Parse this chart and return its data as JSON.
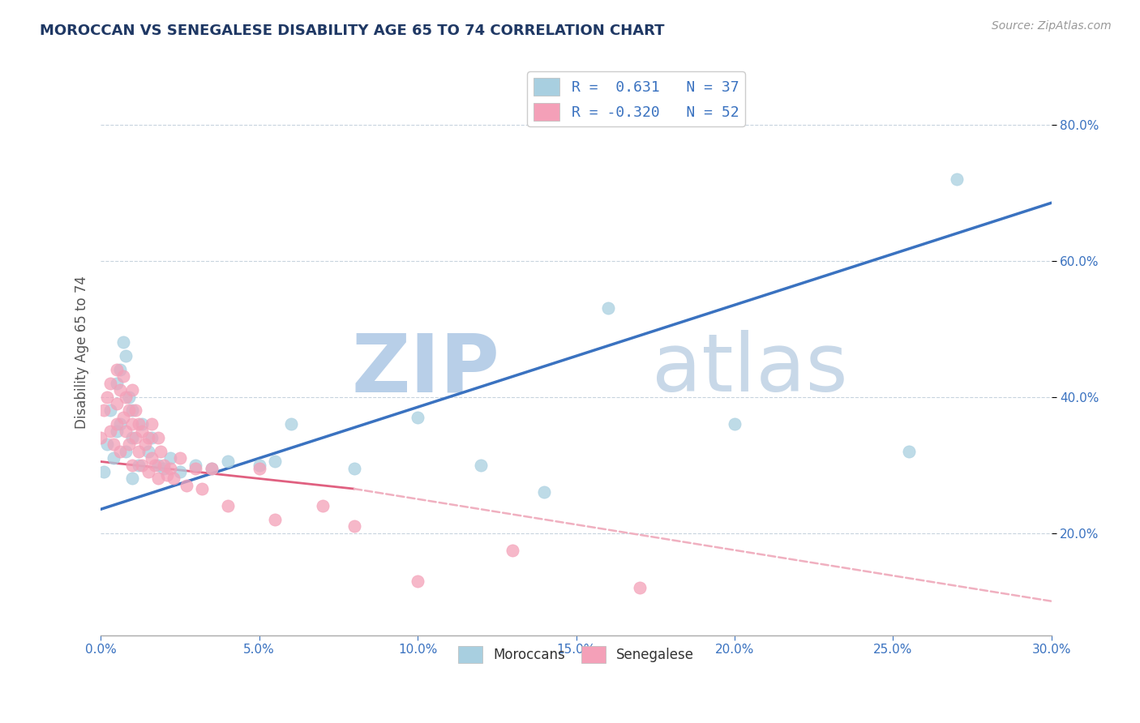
{
  "title": "MOROCCAN VS SENEGALESE DISABILITY AGE 65 TO 74 CORRELATION CHART",
  "source_text": "Source: ZipAtlas.com",
  "ylabel": "Disability Age 65 to 74",
  "xlim": [
    0.0,
    0.3
  ],
  "ylim": [
    0.05,
    0.88
  ],
  "xticks": [
    0.0,
    0.05,
    0.1,
    0.15,
    0.2,
    0.25,
    0.3
  ],
  "yticks_right": [
    0.2,
    0.4,
    0.6,
    0.8
  ],
  "moroccan_R": 0.631,
  "moroccan_N": 37,
  "senegalese_R": -0.32,
  "senegalese_N": 52,
  "moroccan_color": "#a8cfe0",
  "senegalese_color": "#f4a0b8",
  "moroccan_line_color": "#3a72c0",
  "senegalese_line_solid_color": "#e06080",
  "senegalese_line_dash_color": "#f0b0c0",
  "background_color": "#ffffff",
  "watermark_color": "#d0dce8",
  "title_color": "#1f3864",
  "axis_label_color": "#555555",
  "tick_color": "#3a72c0",
  "grid_color": "#c8d4de",
  "moroccan_scatter_x": [
    0.001,
    0.002,
    0.003,
    0.004,
    0.005,
    0.005,
    0.006,
    0.006,
    0.007,
    0.008,
    0.008,
    0.009,
    0.01,
    0.01,
    0.01,
    0.012,
    0.013,
    0.015,
    0.016,
    0.018,
    0.02,
    0.022,
    0.025,
    0.03,
    0.035,
    0.04,
    0.05,
    0.055,
    0.06,
    0.08,
    0.1,
    0.12,
    0.14,
    0.16,
    0.2,
    0.255,
    0.27
  ],
  "moroccan_scatter_y": [
    0.29,
    0.33,
    0.38,
    0.31,
    0.35,
    0.42,
    0.36,
    0.44,
    0.48,
    0.32,
    0.46,
    0.4,
    0.28,
    0.34,
    0.38,
    0.3,
    0.36,
    0.32,
    0.34,
    0.3,
    0.295,
    0.31,
    0.29,
    0.3,
    0.295,
    0.305,
    0.3,
    0.305,
    0.36,
    0.295,
    0.37,
    0.3,
    0.26,
    0.53,
    0.36,
    0.32,
    0.72
  ],
  "senegalese_scatter_x": [
    0.0,
    0.001,
    0.002,
    0.003,
    0.003,
    0.004,
    0.005,
    0.005,
    0.005,
    0.006,
    0.006,
    0.007,
    0.007,
    0.008,
    0.008,
    0.009,
    0.009,
    0.01,
    0.01,
    0.01,
    0.011,
    0.011,
    0.012,
    0.012,
    0.013,
    0.013,
    0.014,
    0.015,
    0.015,
    0.016,
    0.016,
    0.017,
    0.018,
    0.018,
    0.019,
    0.02,
    0.021,
    0.022,
    0.023,
    0.025,
    0.027,
    0.03,
    0.032,
    0.035,
    0.04,
    0.05,
    0.055,
    0.07,
    0.08,
    0.1,
    0.13,
    0.17
  ],
  "senegalese_scatter_y": [
    0.34,
    0.38,
    0.4,
    0.35,
    0.42,
    0.33,
    0.39,
    0.36,
    0.44,
    0.32,
    0.41,
    0.37,
    0.43,
    0.35,
    0.4,
    0.33,
    0.38,
    0.3,
    0.36,
    0.41,
    0.34,
    0.38,
    0.32,
    0.36,
    0.3,
    0.35,
    0.33,
    0.29,
    0.34,
    0.31,
    0.36,
    0.3,
    0.34,
    0.28,
    0.32,
    0.3,
    0.285,
    0.295,
    0.28,
    0.31,
    0.27,
    0.295,
    0.265,
    0.295,
    0.24,
    0.295,
    0.22,
    0.24,
    0.21,
    0.13,
    0.175,
    0.12
  ],
  "mor_line_x0": 0.0,
  "mor_line_x1": 0.3,
  "mor_line_y0": 0.235,
  "mor_line_y1": 0.685,
  "sen_line_solid_x0": 0.0,
  "sen_line_solid_x1": 0.08,
  "sen_line_y0": 0.305,
  "sen_line_y1": 0.265,
  "sen_line_dash_x0": 0.08,
  "sen_line_dash_x1": 0.3,
  "sen_line_dash_y0": 0.265,
  "sen_line_dash_y1": 0.1
}
